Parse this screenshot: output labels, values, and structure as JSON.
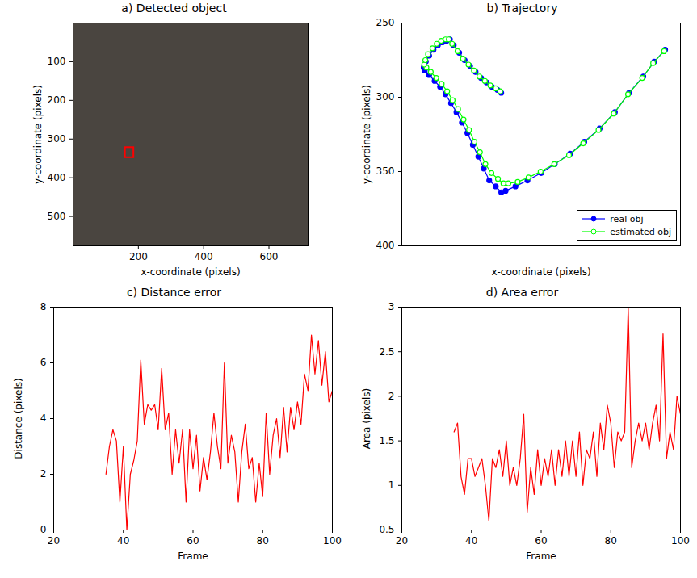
{
  "chart_data": [
    {
      "type": "image",
      "title": "a) Detected object",
      "xlabel": "x-coordinate (pixels)",
      "ylabel": "y-coordinate (pixels)",
      "xlim": [
        0,
        720
      ],
      "xticks": [
        200,
        400,
        600
      ],
      "ylim": [
        0,
        576
      ],
      "yticks": [
        100,
        200,
        300,
        400,
        500
      ],
      "color": "#ff0000",
      "detection_box": {
        "x1": 160,
        "x2": 186,
        "y1": 322,
        "y2": 348
      }
    },
    {
      "type": "scatter",
      "title": "b) Trajectory",
      "xlabel": "x-coordinate (pixels)",
      "ylabel": "y-coordinate (pixels)",
      "xlim": [
        50,
        560
      ],
      "ylim": [
        250,
        400
      ],
      "yticks": [
        250,
        300,
        350,
        400
      ],
      "tick_labels": "y",
      "legend": "lower right",
      "series": [
        {
          "name": "real obj",
          "color": "#0000ff",
          "marker": "filled_circle",
          "line_style": "solid",
          "x": [
            532,
            512,
            492,
            466,
            440,
            412,
            384,
            358,
            330,
            305,
            280,
            258,
            240,
            232,
            222,
            210,
            200,
            190,
            180,
            170,
            160,
            150,
            140,
            130,
            120,
            110,
            100,
            92,
            90,
            94,
            100,
            108,
            116,
            124,
            132,
            138,
            145,
            155,
            165,
            175,
            185,
            195,
            205,
            215,
            225,
            232
          ],
          "values": [
            268,
            276,
            286,
            297,
            310,
            321,
            330,
            338,
            345,
            351,
            356,
            360,
            363,
            364,
            360,
            356,
            348,
            340,
            332,
            324,
            317,
            310,
            304,
            298,
            293,
            289,
            285,
            282,
            280,
            276,
            272,
            268,
            265,
            263,
            262,
            261,
            265,
            270,
            275,
            279,
            283,
            287,
            290,
            293,
            295,
            297
          ]
        },
        {
          "name": "estimated obj",
          "color": "#00ff00",
          "marker": "open_circle",
          "line_style": "solid",
          "x": [
            530,
            510,
            490,
            464,
            438,
            410,
            382,
            356,
            329,
            304,
            282,
            262,
            245,
            236,
            226,
            214,
            203,
            193,
            183,
            173,
            163,
            153,
            143,
            133,
            123,
            113,
            103,
            95,
            91,
            93,
            98,
            106,
            114,
            122,
            130,
            136,
            142,
            152,
            162,
            172,
            182,
            192,
            202,
            212,
            222,
            230
          ],
          "values": [
            269,
            277,
            287,
            298,
            311,
            322,
            331,
            339,
            345,
            350,
            354,
            357,
            358,
            358,
            355,
            351,
            345,
            337,
            330,
            322,
            315,
            308,
            302,
            296,
            291,
            287,
            283,
            280,
            278,
            275,
            271,
            267,
            264,
            262,
            261,
            261,
            264,
            269,
            274,
            278,
            282,
            286,
            289,
            292,
            294,
            296
          ]
        }
      ]
    },
    {
      "type": "line",
      "title": "c) Distance error",
      "xlabel": "Frame",
      "ylabel": "Distance (pixels)",
      "xlim": [
        20,
        100
      ],
      "xticks": [
        20,
        40,
        60,
        80,
        100
      ],
      "ylim": [
        0,
        8
      ],
      "yticks": [
        0,
        2,
        4,
        6,
        8
      ],
      "color": "#ff0000",
      "x": [
        35,
        36,
        37,
        38,
        39,
        40,
        41,
        42,
        43,
        44,
        45,
        46,
        47,
        48,
        49,
        50,
        51,
        52,
        53,
        54,
        55,
        56,
        57,
        58,
        59,
        60,
        61,
        62,
        63,
        64,
        65,
        66,
        67,
        68,
        69,
        70,
        71,
        72,
        73,
        74,
        75,
        76,
        77,
        78,
        79,
        80,
        81,
        82,
        83,
        84,
        85,
        86,
        87,
        88,
        89,
        90,
        91,
        92,
        93,
        94,
        95,
        96,
        97,
        98,
        99,
        100
      ],
      "values": [
        2.0,
        3.0,
        3.6,
        3.2,
        1.0,
        3.0,
        0,
        2.0,
        2.5,
        3.2,
        6.1,
        3.8,
        4.5,
        4.3,
        4.5,
        3.6,
        5.8,
        3.6,
        4.2,
        2.0,
        3.6,
        2.4,
        3.6,
        1.0,
        3.6,
        2.2,
        3.4,
        1.4,
        2.6,
        1.8,
        2.8,
        4.2,
        3.0,
        2.2,
        6.0,
        2.4,
        3.4,
        2.8,
        1.0,
        2.8,
        3.8,
        2.2,
        2.6,
        1.0,
        2.4,
        1.2,
        4.2,
        2.0,
        3.4,
        4.0,
        2.6,
        4.4,
        2.8,
        4.4,
        3.6,
        4.6,
        3.8,
        5.6,
        5.0,
        7.0,
        5.6,
        6.8,
        5.2,
        6.4,
        4.6,
        5.0
      ]
    },
    {
      "type": "line",
      "title": "d) Area error",
      "xlabel": "Frame",
      "ylabel": "Area (pixels)",
      "xlim": [
        20,
        100
      ],
      "xticks": [
        20,
        40,
        60,
        80,
        100
      ],
      "ylim": [
        0.5,
        3
      ],
      "yticks": [
        0.5,
        1,
        1.5,
        2,
        2.5,
        3
      ],
      "color": "#ff0000",
      "x": [
        35,
        36,
        37,
        38,
        39,
        40,
        41,
        42,
        43,
        44,
        45,
        46,
        47,
        48,
        49,
        50,
        51,
        52,
        53,
        54,
        55,
        56,
        57,
        58,
        59,
        60,
        61,
        62,
        63,
        64,
        65,
        66,
        67,
        68,
        69,
        70,
        71,
        72,
        73,
        74,
        75,
        76,
        77,
        78,
        79,
        80,
        81,
        82,
        83,
        84,
        85,
        86,
        87,
        88,
        89,
        90,
        91,
        92,
        93,
        94,
        95,
        96,
        97,
        98,
        99,
        100
      ],
      "values": [
        1.6,
        1.7,
        1.1,
        0.9,
        1.3,
        1.3,
        1.1,
        1.2,
        1.3,
        1.0,
        0.6,
        1.3,
        1.2,
        1.4,
        1.1,
        1.5,
        1.0,
        1.2,
        1.0,
        1.3,
        1.8,
        0.7,
        1.2,
        0.9,
        1.4,
        1.0,
        1.3,
        1.1,
        1.4,
        1.0,
        1.4,
        1.1,
        1.5,
        1.1,
        1.5,
        1.1,
        1.6,
        1.0,
        1.4,
        1.3,
        1.6,
        1.1,
        1.7,
        1.4,
        1.9,
        1.7,
        1.2,
        1.6,
        1.5,
        1.6,
        3.0,
        1.2,
        1.5,
        1.7,
        1.5,
        1.7,
        1.4,
        1.7,
        1.9,
        1.5,
        2.7,
        1.3,
        1.6,
        1.4,
        2.0,
        1.8
      ]
    }
  ]
}
